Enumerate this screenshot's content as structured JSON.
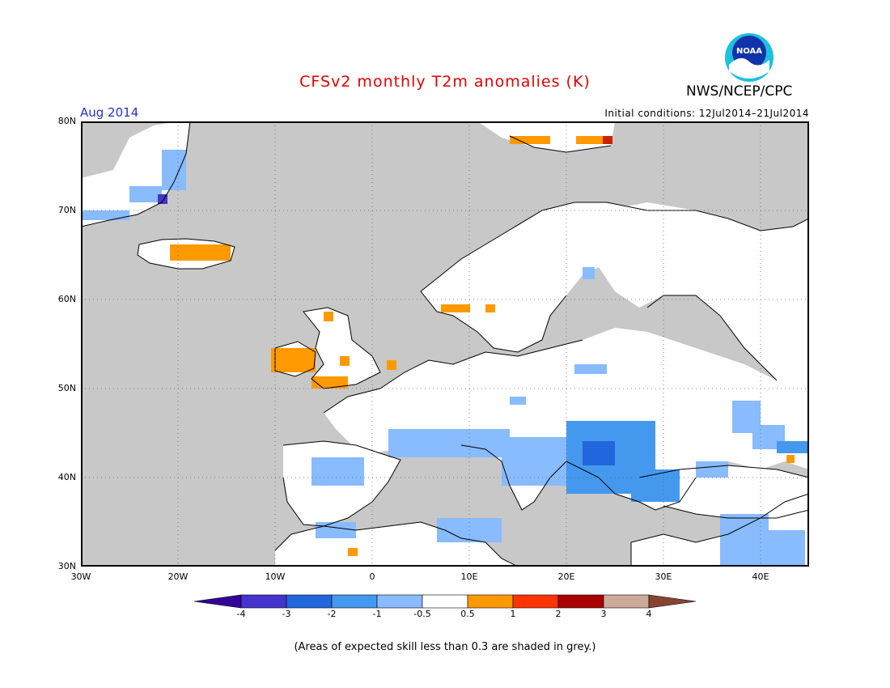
{
  "header": {
    "title": "CFSv2 monthly T2m anomalies (K)",
    "agency": "NWS/NCEP/CPC",
    "logo_text": "NOAA",
    "month": "Aug 2014",
    "initial_conditions": "Initial conditions: 12Jul2014–21Jul2014"
  },
  "map": {
    "lon_range": [
      -30,
      45
    ],
    "lat_range": [
      30,
      80
    ],
    "lat_labels": [
      "80N",
      "70N",
      "60N",
      "50N",
      "40N",
      "30N"
    ],
    "lon_labels": [
      "30W",
      "20W",
      "10W",
      "0",
      "10E",
      "20E",
      "30E",
      "40E"
    ],
    "colors": {
      "ocean_low_skill": "#c8c8c8",
      "land_neutral": "#ffffff",
      "coast": "#000000"
    }
  },
  "colorbar": {
    "labels": [
      "-4",
      "-3",
      "-2",
      "-1",
      "-0.5",
      "0.5",
      "1",
      "2",
      "3",
      "4"
    ],
    "colors": [
      "#330099",
      "#4433cc",
      "#2266dd",
      "#4499ee",
      "#88bbff",
      "#ffffff",
      "#ff9900",
      "#ff3300",
      "#aa0000",
      "#ccaa99",
      "#884433"
    ]
  },
  "footnote": "(Areas of expected skill less than 0.3 are shaded in grey.)"
}
